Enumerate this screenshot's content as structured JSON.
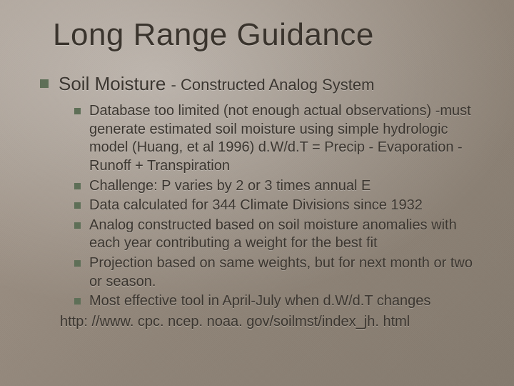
{
  "title": "Long Range Guidance",
  "colors": {
    "bullet": "#5e6f57",
    "text": "#3b3630",
    "bgFrom": "#a59a8f",
    "bgTo": "#847a6e"
  },
  "typography": {
    "title_fontsize": 44,
    "l1_fontsize": 26,
    "l1_sub_fontsize": 22,
    "l2_fontsize": 20,
    "font_family": "Tahoma"
  },
  "main": {
    "heading": "Soil Moisture",
    "subheading": "- Constructed Analog System"
  },
  "sub_bullets": [
    "Database too limited (not enough actual observations) -must generate estimated soil moisture using simple hydrologic model (Huang, et al 1996) d.W/d.T = Precip - Evaporation - Runoff + Transpiration",
    "Challenge: P varies by 2 or 3 times annual E",
    "Data calculated for 344 Climate Divisions since 1932",
    "Analog constructed based on soil moisture anomalies with each year contributing a weight for the best fit",
    "Projection based on same weights, but for next month or two or season.",
    "Most effective tool in April-July when d.W/d.T changes"
  ],
  "footer_link": "http: //www. cpc. ncep. noaa. gov/soilmst/index_jh. html"
}
